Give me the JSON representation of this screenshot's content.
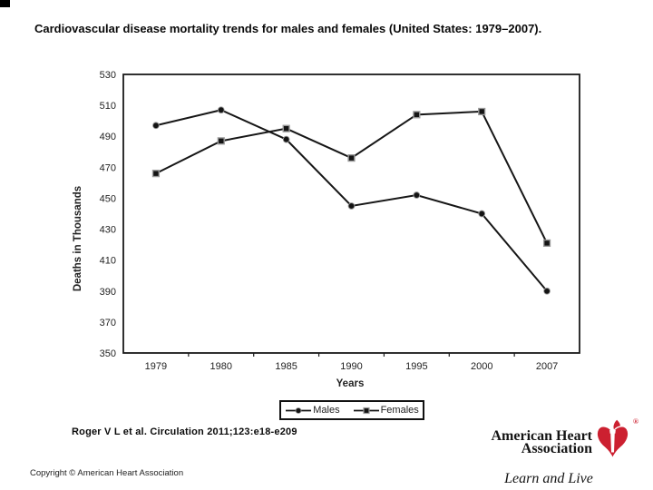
{
  "page": {
    "title": "Cardiovascular disease mortality trends for males and females (United States: 1979–2007).",
    "citation": "Roger V L et al. Circulation 2011;123:e18-e209",
    "copyright": "Copyright © American Heart Association"
  },
  "logo": {
    "name_line1": "American Heart",
    "name_line2": "Association",
    "registered_mark": "®",
    "tagline": "Learn and Live",
    "heart_color": "#cc2030"
  },
  "chart_data": {
    "type": "line",
    "title": "",
    "xlabel": "Years",
    "ylabel": "Deaths in Thousands",
    "categories": [
      "1979",
      "1980",
      "1985",
      "1990",
      "1995",
      "2000",
      "2007"
    ],
    "series": [
      {
        "name": "Males",
        "marker": "circle",
        "values": [
          497,
          507,
          488,
          445,
          452,
          440,
          390
        ]
      },
      {
        "name": "Females",
        "marker": "square",
        "values": [
          466,
          487,
          495,
          476,
          504,
          506,
          421
        ]
      }
    ],
    "ylim": [
      350,
      530
    ],
    "yticks": [
      350,
      370,
      390,
      410,
      430,
      450,
      470,
      490,
      510,
      530
    ],
    "grid": false,
    "legend_position": "bottom",
    "line_color": "#161616",
    "marker_fill": "#141414",
    "marker_edge": "#999999"
  }
}
